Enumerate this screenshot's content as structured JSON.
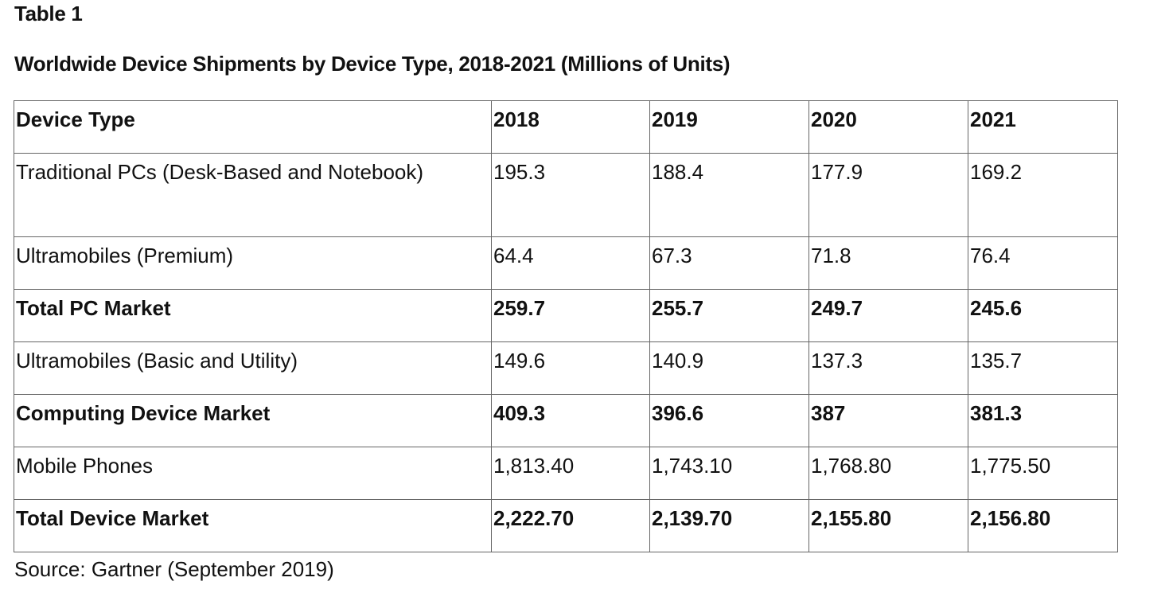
{
  "label": "Table 1",
  "title": "Worldwide Device Shipments by Device Type, 2018-2021 (Millions of Units)",
  "headers": [
    "Device Type",
    "2018",
    "2019",
    "2020",
    "2021"
  ],
  "rows": [
    {
      "type": "Traditional PCs (Desk-Based and Notebook)",
      "values": [
        "195.3",
        "188.4",
        "177.9",
        "169.2"
      ],
      "bold": false
    },
    {
      "type": "Ultramobiles (Premium)",
      "values": [
        "64.4",
        "67.3",
        "71.8",
        "76.4"
      ],
      "bold": false
    },
    {
      "type": "Total PC Market",
      "values": [
        "259.7",
        "255.7",
        "249.7",
        "245.6"
      ],
      "bold": true
    },
    {
      "type": "Ultramobiles (Basic and Utility)",
      "values": [
        "149.6",
        "140.9",
        "137.3",
        "135.7"
      ],
      "bold": false
    },
    {
      "type": "Computing Device Market",
      "values": [
        "409.3",
        "396.6",
        "387",
        "381.3"
      ],
      "bold": true
    },
    {
      "type": "Mobile Phones",
      "values": [
        "1,813.40",
        "1,743.10",
        "1,768.80",
        "1,775.50"
      ],
      "bold": false
    },
    {
      "type": "Total Device Market",
      "values": [
        "2,222.70",
        "2,139.70",
        "2,155.80",
        "2,156.80"
      ],
      "bold": true
    }
  ],
  "source": "Source: Gartner (September 2019)"
}
